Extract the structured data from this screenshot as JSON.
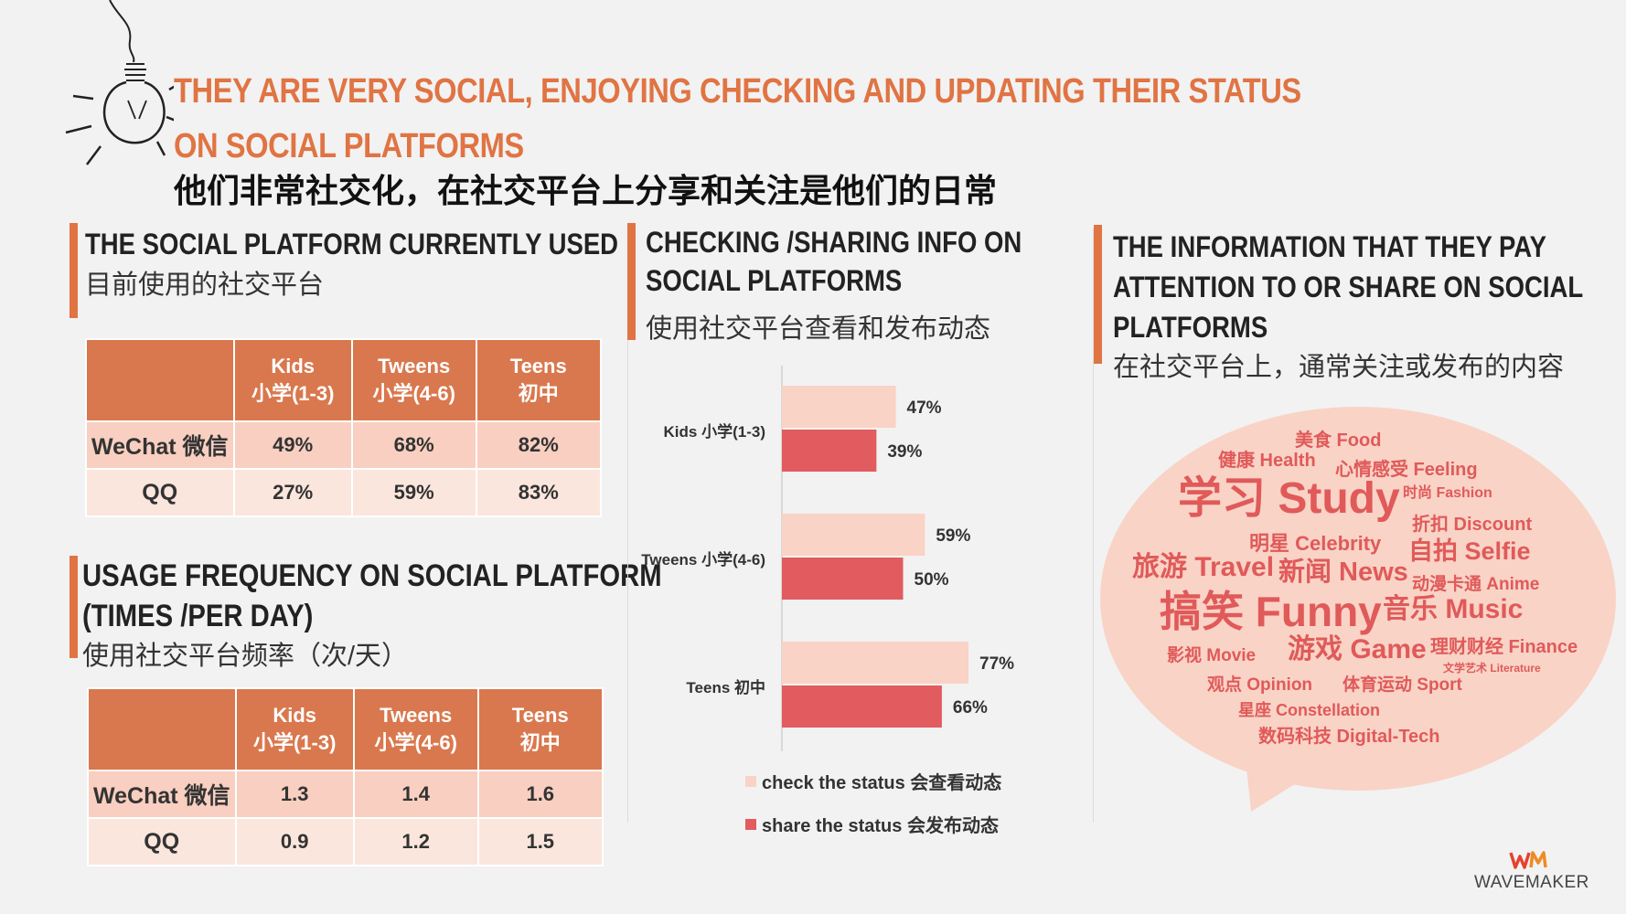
{
  "header": {
    "title_line1": "THEY ARE VERY SOCIAL, ENJOYING CHECKING AND UPDATING THEIR STATUS",
    "title_line2": "ON SOCIAL PLATFORMS",
    "subtitle_cn": "他们非常社交化，在社交平台上分享和关注是他们的日常"
  },
  "platform_section": {
    "title": "THE SOCIAL PLATFORM CURRENTLY USED",
    "subtitle": "目前使用的社交平台",
    "columns": [
      {
        "en": "Kids",
        "cn": "小学(1-3)"
      },
      {
        "en": "Tweens",
        "cn": "小学(4-6)"
      },
      {
        "en": "Teens",
        "cn": "初中"
      }
    ],
    "rows": [
      {
        "label": "WeChat 微信",
        "values": [
          "49%",
          "68%",
          "82%"
        ]
      },
      {
        "label": "QQ",
        "values": [
          "27%",
          "59%",
          "83%"
        ]
      }
    ]
  },
  "frequency_section": {
    "title_line1": "USAGE FREQUENCY ON SOCIAL PLATFORM",
    "title_line2": "(TIMES /PER DAY)",
    "subtitle": "使用社交平台频率（次/天）",
    "columns": [
      {
        "en": "Kids",
        "cn": "小学(1-3)"
      },
      {
        "en": "Tweens",
        "cn": "小学(4-6)"
      },
      {
        "en": "Teens",
        "cn": "初中"
      }
    ],
    "rows": [
      {
        "label": "WeChat 微信",
        "values": [
          "1.3",
          "1.4",
          "1.6"
        ]
      },
      {
        "label": "QQ",
        "values": [
          "0.9",
          "1.2",
          "1.5"
        ]
      }
    ]
  },
  "checking_section": {
    "title_line1": "CHECKING /SHARING INFO ON",
    "title_line2": "SOCIAL PLATFORMS",
    "subtitle": "使用社交平台查看和发布动态"
  },
  "chart_data": {
    "type": "bar",
    "orientation": "horizontal",
    "categories": [
      "Kids 小学(1-3)",
      "Tweens 小学(4-6)",
      "Teens 初中"
    ],
    "series": [
      {
        "name": "check the status 会查看动态",
        "values": [
          47,
          59,
          77
        ],
        "labels": [
          "47%",
          "59%",
          "77%"
        ],
        "color": "#f9d3c6"
      },
      {
        "name": "share the status 会发布动态",
        "values": [
          39,
          50,
          66
        ],
        "labels": [
          "39%",
          "50%",
          "66%"
        ],
        "color": "#e25b5e"
      }
    ],
    "xlim": [
      0,
      100
    ],
    "title": "",
    "xlabel": "",
    "ylabel": "",
    "legend": "bottom"
  },
  "info_section": {
    "title_line1": "THE INFORMATION THAT THEY PAY",
    "title_line2": "ATTENTION TO OR SHARE ON SOCIAL",
    "title_line3": "PLATFORMS",
    "subtitle": "在社交平台上，通常关注或发布的内容"
  },
  "word_cloud": [
    "美食 Food",
    "健康 Health",
    "心情感受 Feeling",
    "学习 Study",
    "时尚 Fashion",
    "折扣 Discount",
    "明星 Celebrity",
    "自拍 Selfie",
    "旅游 Travel",
    "新闻 News",
    "动漫卡通 Anime",
    "搞笑 Funny",
    "音乐 Music",
    "影视 Movie",
    "游戏 Game",
    "理财财经 Finance",
    "文学艺术 Literature",
    "观点 Opinion",
    "体育运动 Sport",
    "星座 Constellation",
    "数码科技 Digital-Tech"
  ],
  "brand": {
    "mark": "WM",
    "name": "WAVEMAKER"
  },
  "colors": {
    "accent": "#e07443",
    "check": "#f9d3c6",
    "share": "#e25b5e",
    "table_header": "#d9784e"
  }
}
